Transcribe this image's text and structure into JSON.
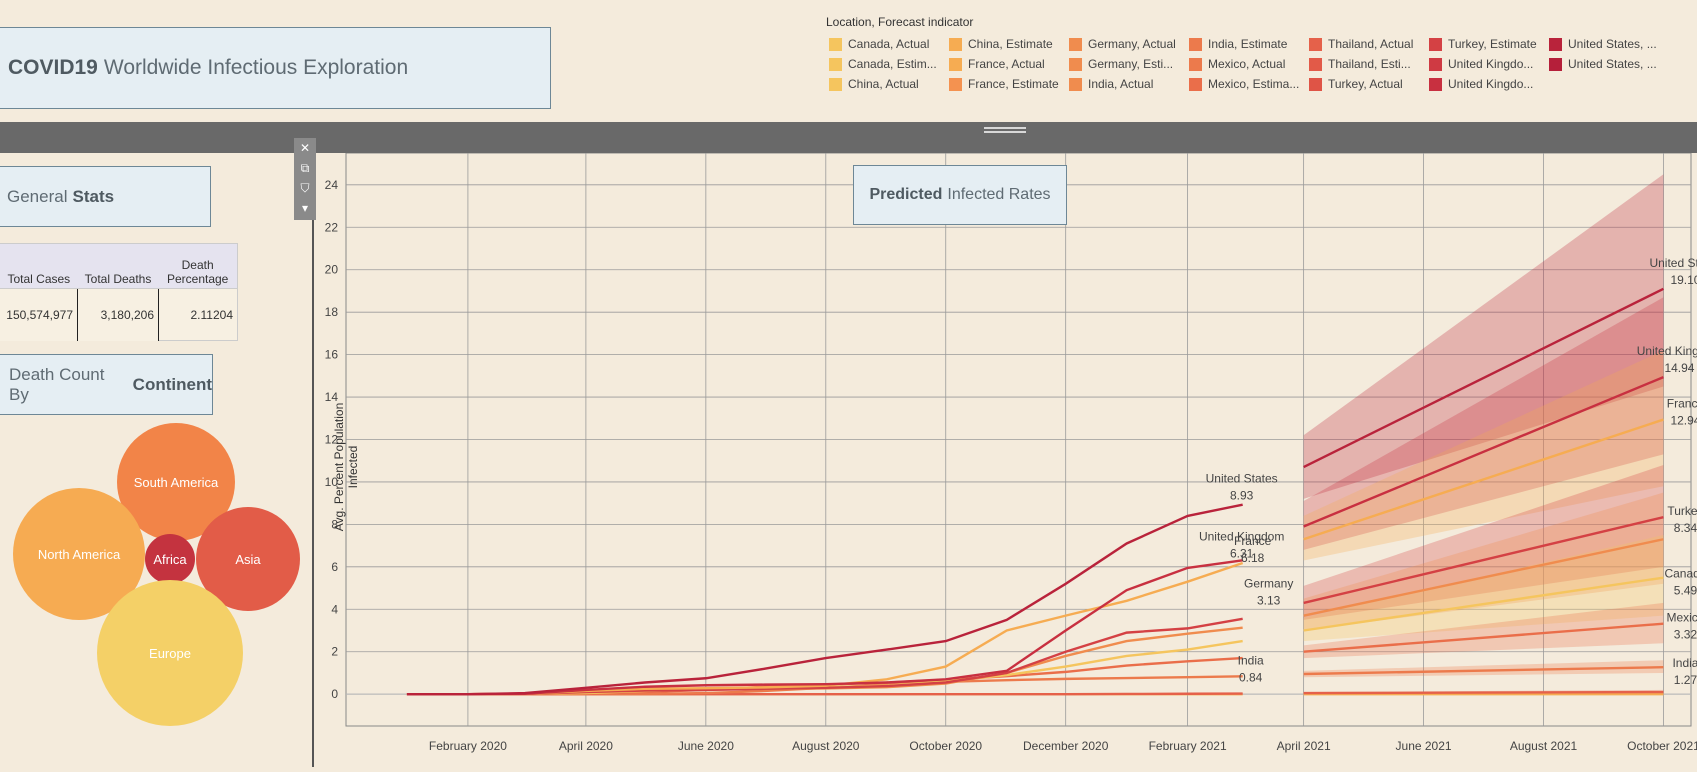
{
  "dashboard": {
    "title_bold": "COVID19",
    "title_rest": "Worldwide Infectious Exploration"
  },
  "legend": {
    "title": "Location, Forecast indicator",
    "items": [
      {
        "label": "Canada, Actual",
        "color": "#f5c55e"
      },
      {
        "label": "Canada, Estim...",
        "color": "#f5c55e"
      },
      {
        "label": "China, Actual",
        "color": "#f5c55e"
      },
      {
        "label": "China, Estimate",
        "color": "#f6ac52"
      },
      {
        "label": "France, Actual",
        "color": "#f6ac52"
      },
      {
        "label": "France, Estimate",
        "color": "#f49250"
      },
      {
        "label": "Germany, Actual",
        "color": "#f08c4e"
      },
      {
        "label": "Germany, Esti...",
        "color": "#f08c4e"
      },
      {
        "label": "India, Actual",
        "color": "#f08c4e"
      },
      {
        "label": "India, Estimate",
        "color": "#ec7a4c"
      },
      {
        "label": "Mexico, Actual",
        "color": "#ec7a4c"
      },
      {
        "label": "Mexico, Estima...",
        "color": "#ea6e4a"
      },
      {
        "label": "Thailand, Actual",
        "color": "#e5614a"
      },
      {
        "label": "Thailand, Esti...",
        "color": "#e25a48"
      },
      {
        "label": "Turkey, Actual",
        "color": "#df5446"
      },
      {
        "label": "Turkey, Estimate",
        "color": "#d44144"
      },
      {
        "label": "United Kingdo...",
        "color": "#cf3a43"
      },
      {
        "label": "United Kingdo...",
        "color": "#c83040"
      },
      {
        "label": "United States, ...",
        "color": "#b9233b"
      },
      {
        "label": "United States, ...",
        "color": "#b51f3a"
      }
    ]
  },
  "general_stats": {
    "title_plain": "General",
    "title_bold": "Stats",
    "headers": [
      "Total Cases",
      "Total Deaths",
      "Death Percentage"
    ],
    "values": [
      "150,574,977",
      "3,180,206",
      "2.11204"
    ]
  },
  "death_count": {
    "title_plain": "Death Count By",
    "title_bold": "Continent",
    "bubbles": [
      {
        "label": "South America",
        "color": "#f28448"
      },
      {
        "label": "North America",
        "color": "#f6ab52"
      },
      {
        "label": "Africa",
        "color": "#c4333f"
      },
      {
        "label": "Asia",
        "color": "#e25c48"
      },
      {
        "label": "Europe",
        "color": "#f4d067"
      }
    ]
  },
  "chart_data": {
    "type": "line",
    "title_bold": "Predicted",
    "title_rest": "Infected Rates",
    "ylabel": "Avg. Percent Population Infected",
    "ylim": [
      -1.5,
      25.5
    ],
    "yticks": [
      0,
      2,
      4,
      6,
      8,
      10,
      12,
      14,
      16,
      18,
      20,
      22,
      24
    ],
    "x_tick_labels": [
      "February 2020",
      "April 2020",
      "June 2020",
      "August 2020",
      "October 2020",
      "December 2020",
      "February 2021",
      "April 2021",
      "June 2021",
      "August 2021",
      "October 2021"
    ],
    "x_tick_dates": [
      "2020-02-01",
      "2020-04-01",
      "2020-06-01",
      "2020-08-01",
      "2020-10-01",
      "2020-12-01",
      "2021-02-01",
      "2021-04-01",
      "2021-06-01",
      "2021-08-01",
      "2021-10-01"
    ],
    "x_range": [
      "2019-12-01",
      "2021-10-15"
    ],
    "actual_dates": [
      "2020-01-01",
      "2020-02-01",
      "2020-03-01",
      "2020-04-01",
      "2020-05-01",
      "2020-06-01",
      "2020-07-01",
      "2020-08-01",
      "2020-09-01",
      "2020-10-01",
      "2020-11-01",
      "2020-12-01",
      "2021-01-01",
      "2021-02-01",
      "2021-03-01"
    ],
    "forecast_dates": [
      "2021-04-01",
      "2021-10-01"
    ],
    "series": [
      {
        "name": "United States",
        "color": "#b9233b",
        "actual": [
          0,
          0,
          0.05,
          0.3,
          0.55,
          0.75,
          1.2,
          1.7,
          2.1,
          2.5,
          3.5,
          5.2,
          7.1,
          8.4,
          8.93
        ],
        "estimate": [
          10.7,
          19.1
        ],
        "band_low": [
          9.2,
          14.5
        ],
        "band_high": [
          12.2,
          24.5
        ],
        "label_actual": [
          "United States",
          "8.93"
        ],
        "label_forecast": [
          "United States",
          "19.10"
        ]
      },
      {
        "name": "United Kingdom",
        "color": "#c83040",
        "actual": [
          0,
          0,
          0.02,
          0.2,
          0.35,
          0.42,
          0.45,
          0.47,
          0.55,
          0.7,
          1.1,
          3.0,
          4.9,
          5.95,
          6.31
        ],
        "estimate": [
          7.9,
          14.94
        ],
        "band_low": [
          6.8,
          11.3
        ],
        "band_high": [
          9.1,
          18.7
        ],
        "label_actual": [
          "United Kingdom",
          "6.31"
        ],
        "label_forecast": [
          "United Kingdom",
          "14.94"
        ]
      },
      {
        "name": "France",
        "color": "#f6ac52",
        "actual": [
          0,
          0,
          0.02,
          0.15,
          0.25,
          0.28,
          0.32,
          0.4,
          0.7,
          1.3,
          3.0,
          3.7,
          4.4,
          5.3,
          6.18
        ],
        "estimate": [
          7.3,
          12.94
        ],
        "band_low": [
          6.3,
          9.8
        ],
        "band_high": [
          8.4,
          16.2
        ],
        "label_actual": [
          "France",
          "6.18"
        ],
        "label_forecast": [
          "France",
          "12.94"
        ]
      },
      {
        "name": "Turkey",
        "color": "#d44144",
        "actual": [
          0,
          0,
          0.01,
          0.1,
          0.17,
          0.2,
          0.25,
          0.3,
          0.38,
          0.55,
          1.0,
          2.0,
          2.9,
          3.1,
          3.55
        ],
        "estimate": [
          4.3,
          8.34
        ],
        "band_low": [
          3.5,
          6.0
        ],
        "band_high": [
          5.1,
          10.8
        ],
        "label_forecast": [
          "Turkey",
          "8.34"
        ]
      },
      {
        "name": "Germany",
        "color": "#f08c4e",
        "actual": [
          0,
          0,
          0.01,
          0.15,
          0.2,
          0.22,
          0.24,
          0.27,
          0.33,
          0.5,
          1.0,
          1.8,
          2.5,
          2.85,
          3.13
        ],
        "estimate": [
          3.7,
          7.3
        ],
        "band_low": [
          3.0,
          5.2
        ],
        "band_high": [
          4.5,
          9.5
        ],
        "label_actual": [
          "Germany",
          "3.13"
        ]
      },
      {
        "name": "Canada",
        "color": "#f5c55e",
        "actual": [
          0,
          0,
          0.01,
          0.05,
          0.15,
          0.25,
          0.28,
          0.32,
          0.4,
          0.6,
          0.9,
          1.3,
          1.8,
          2.1,
          2.5
        ],
        "estimate": [
          3.0,
          5.49
        ],
        "band_low": [
          2.5,
          3.7
        ],
        "band_high": [
          3.6,
          7.5
        ],
        "label_forecast": [
          "Canada",
          "5.49"
        ]
      },
      {
        "name": "Mexico",
        "color": "#ea6e4a",
        "actual": [
          0,
          0,
          0,
          0.02,
          0.1,
          0.2,
          0.35,
          0.45,
          0.55,
          0.68,
          0.85,
          1.05,
          1.35,
          1.55,
          1.7
        ],
        "estimate": [
          2.0,
          3.32
        ],
        "band_low": [
          1.7,
          2.4
        ],
        "band_high": [
          2.3,
          4.3
        ],
        "label_forecast": [
          "Mexico",
          "3.32"
        ]
      },
      {
        "name": "India",
        "color": "#ec7a4c",
        "actual": [
          0,
          0,
          0,
          0,
          0.01,
          0.05,
          0.15,
          0.3,
          0.45,
          0.58,
          0.66,
          0.72,
          0.76,
          0.8,
          0.84
        ],
        "estimate": [
          0.95,
          1.27
        ],
        "band_low": [
          0.8,
          1.0
        ],
        "band_high": [
          1.1,
          1.6
        ],
        "label_actual": [
          "India",
          "0.84"
        ],
        "label_forecast": [
          "India",
          "1.27"
        ]
      },
      {
        "name": "Thailand",
        "color": "#e5614a",
        "actual": [
          0,
          0,
          0,
          0,
          0,
          0,
          0,
          0,
          0,
          0,
          0,
          0,
          0.01,
          0.02,
          0.03
        ],
        "estimate": [
          0.05,
          0.1
        ],
        "band_low": [
          0.0,
          0.0
        ],
        "band_high": [
          0.1,
          0.2
        ]
      },
      {
        "name": "China",
        "color": "#f6ac52",
        "actual": [
          0,
          0,
          0,
          0,
          0,
          0,
          0,
          0,
          0,
          0,
          0,
          0,
          0,
          0,
          0
        ],
        "estimate": [
          0.0,
          0.0
        ],
        "band_low": [
          0.0,
          0.0
        ],
        "band_high": [
          0.05,
          0.1
        ]
      }
    ]
  }
}
